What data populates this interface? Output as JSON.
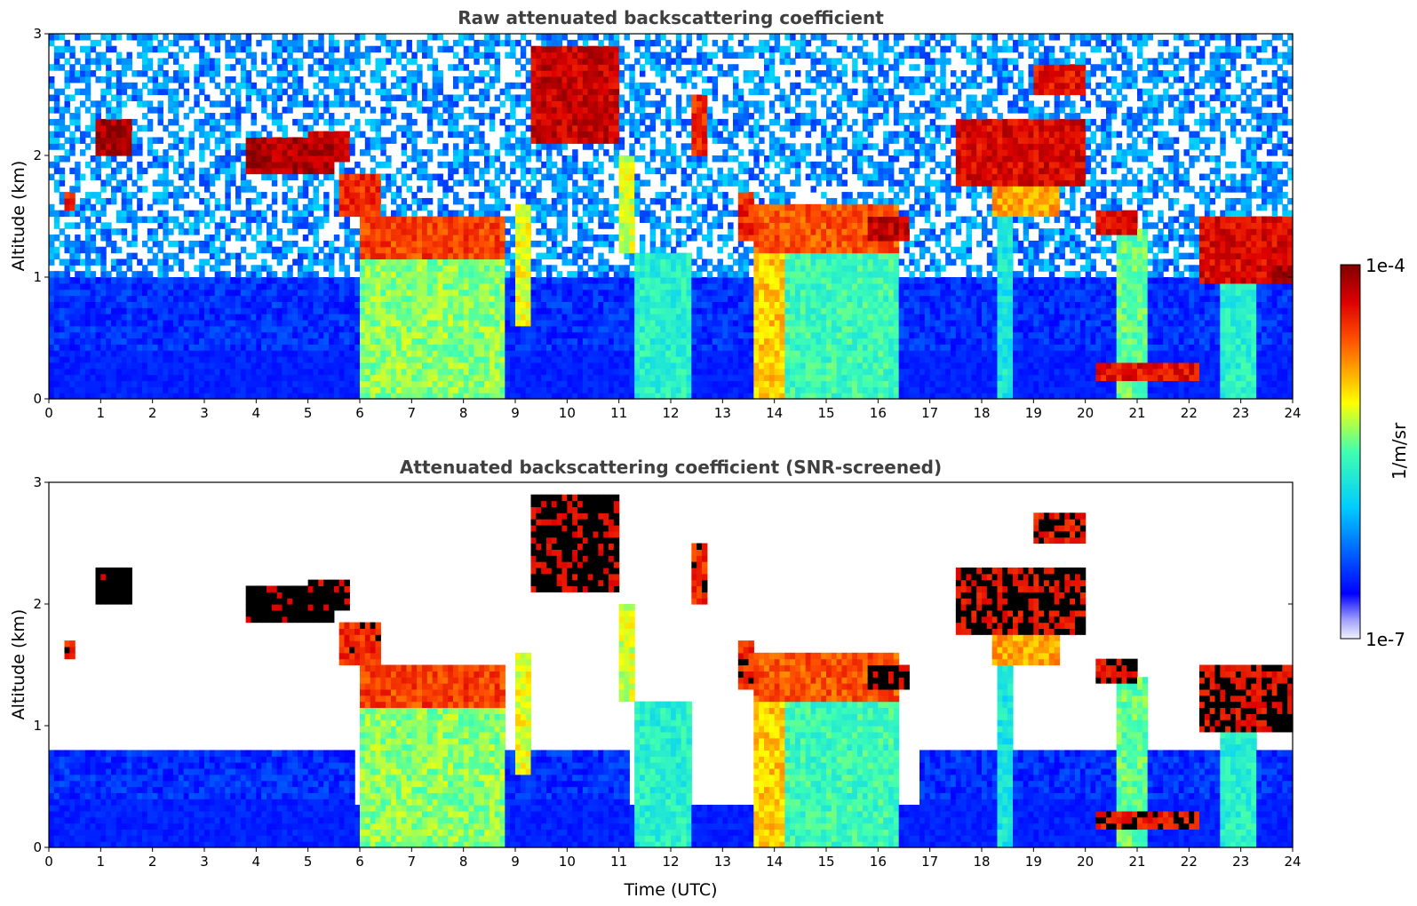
{
  "chart_data": [
    {
      "type": "heatmap",
      "title": "Raw attenuated backscattering coefficient",
      "xlabel": "",
      "ylabel": "Altitude (km)",
      "xlim": [
        0,
        24
      ],
      "ylim": [
        0,
        3
      ],
      "x_ticks": [
        "0",
        "1",
        "2",
        "3",
        "4",
        "5",
        "6",
        "7",
        "8",
        "9",
        "10",
        "11",
        "12",
        "13",
        "14",
        "15",
        "16",
        "17",
        "18",
        "19",
        "20",
        "21",
        "22",
        "23",
        "24"
      ],
      "y_ticks": [
        "0",
        "1",
        "2",
        "3"
      ],
      "screened": false,
      "features": [
        {
          "x0": 6.0,
          "x1": 8.8,
          "y0": 1.15,
          "y1": 1.5,
          "level": 0.82
        },
        {
          "x0": 6.0,
          "x1": 8.8,
          "y0": 0.0,
          "y1": 1.15,
          "level": 0.55
        },
        {
          "x0": 13.6,
          "x1": 16.4,
          "y0": 1.2,
          "y1": 1.6,
          "level": 0.8
        },
        {
          "x0": 13.6,
          "x1": 16.4,
          "y0": 0.0,
          "y1": 1.2,
          "level": 0.5
        },
        {
          "x0": 0.9,
          "x1": 1.6,
          "y0": 2.0,
          "y1": 2.3,
          "level": 0.95
        },
        {
          "x0": 3.8,
          "x1": 5.5,
          "y0": 1.85,
          "y1": 2.15,
          "level": 0.95
        },
        {
          "x0": 9.3,
          "x1": 11.0,
          "y0": 2.1,
          "y1": 2.9,
          "level": 0.92
        },
        {
          "x0": 17.5,
          "x1": 20.0,
          "y0": 1.75,
          "y1": 2.3,
          "level": 0.9
        },
        {
          "x0": 22.2,
          "x1": 24.0,
          "y0": 0.95,
          "y1": 1.5,
          "level": 0.9
        },
        {
          "x0": 20.2,
          "x1": 22.2,
          "y0": 0.15,
          "y1": 0.3,
          "level": 0.88
        }
      ]
    },
    {
      "type": "heatmap",
      "title": "Attenuated backscattering coefficient (SNR-screened)",
      "xlabel": "Time (UTC)",
      "ylabel": "Altitude (km)",
      "xlim": [
        0,
        24
      ],
      "ylim": [
        0,
        3
      ],
      "x_ticks": [
        "0",
        "1",
        "2",
        "3",
        "4",
        "5",
        "6",
        "7",
        "8",
        "9",
        "10",
        "11",
        "12",
        "13",
        "14",
        "15",
        "16",
        "17",
        "18",
        "19",
        "20",
        "21",
        "22",
        "23",
        "24"
      ],
      "y_ticks": [
        "0",
        "1",
        "2",
        "3"
      ],
      "screened": true
    }
  ],
  "colorbar": {
    "max_label": "1e-4",
    "min_label": "1e-7",
    "unit_label": "1/m/sr",
    "colormap": "jet"
  }
}
